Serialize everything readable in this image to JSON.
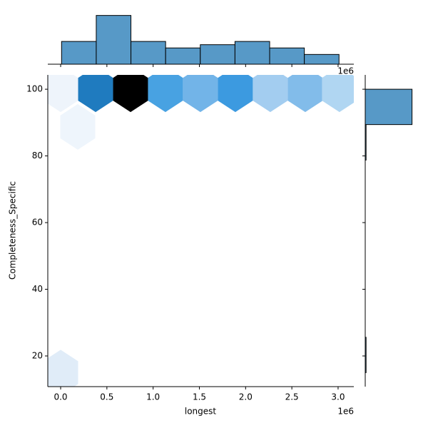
{
  "chart_data": {
    "type": "hexbin",
    "x_label": "longest",
    "y_label": "Completeness_Specific",
    "x_offset_label": "1e6",
    "xlim": [
      -0.139,
      3.17
    ],
    "ylim": [
      10.8,
      104.3
    ],
    "xticks": [
      {
        "value": 0,
        "label": "0.0"
      },
      0.5,
      {
        "value": 1,
        "label": "1.0"
      },
      1.5,
      {
        "value": 2,
        "label": "2.0"
      },
      2.5,
      {
        "value": 3,
        "label": "3.0"
      }
    ],
    "yticks": [
      20,
      40,
      60,
      80,
      100
    ],
    "hexes": {
      "x": [
        0.0,
        0.185,
        0.378,
        0.756,
        1.133,
        1.511,
        1.889,
        2.267,
        2.645,
        3.015,
        0.0
      ],
      "y": [
        100,
        88.7,
        100,
        100,
        100,
        100,
        100,
        100,
        100,
        100,
        15
      ],
      "values": [
        1,
        1,
        12,
        16,
        9,
        7,
        10,
        4,
        6,
        3,
        2
      ],
      "colors": [
        "#eef4fb",
        "#eef5fc",
        "#1f7bbf",
        "#000000",
        "#48a2e2",
        "#72b4e8",
        "#3c9ae0",
        "#a3cdf0",
        "#82bcea",
        "#b0d6f2",
        "#e0ecf8"
      ]
    },
    "marginal_x": {
      "type": "histogram",
      "bins": [
        0.01,
        0.385,
        0.76,
        1.135,
        1.51,
        1.885,
        2.26,
        2.635,
        3.01
      ],
      "values": [
        7,
        15,
        7,
        5,
        6,
        7,
        5,
        3
      ],
      "ylim": [
        0,
        15.8
      ],
      "color": "#5799c7"
    },
    "marginal_y": {
      "type": "histogram",
      "bins": [
        15,
        25.6,
        36.25,
        46.9,
        57.5,
        68.1,
        78.75,
        89.4,
        100
      ],
      "values": [
        1,
        0,
        0,
        0,
        0,
        0,
        1,
        55
      ],
      "xlim": [
        0,
        57
      ],
      "color": "#5799c7"
    }
  }
}
